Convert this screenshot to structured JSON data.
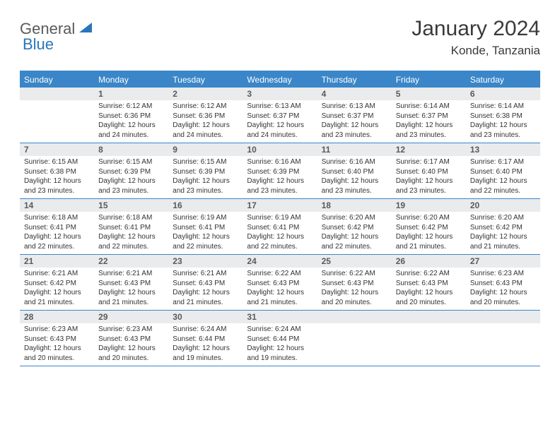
{
  "brand": {
    "name1": "General",
    "name2": "Blue"
  },
  "title": "January 2024",
  "location": "Konde, Tanzania",
  "colors": {
    "headerBar": "#3a86c8",
    "dayNumBg": "#e9ebed",
    "text": "#333333",
    "titleText": "#3a3a3a",
    "brandGrey": "#5a5a5a",
    "brandBlue": "#2976bb"
  },
  "days": [
    "Sunday",
    "Monday",
    "Tuesday",
    "Wednesday",
    "Thursday",
    "Friday",
    "Saturday"
  ],
  "weeks": [
    [
      null,
      {
        "n": "1",
        "sr": "6:12 AM",
        "ss": "6:36 PM",
        "dl": "12 hours and 24 minutes."
      },
      {
        "n": "2",
        "sr": "6:12 AM",
        "ss": "6:36 PM",
        "dl": "12 hours and 24 minutes."
      },
      {
        "n": "3",
        "sr": "6:13 AM",
        "ss": "6:37 PM",
        "dl": "12 hours and 24 minutes."
      },
      {
        "n": "4",
        "sr": "6:13 AM",
        "ss": "6:37 PM",
        "dl": "12 hours and 23 minutes."
      },
      {
        "n": "5",
        "sr": "6:14 AM",
        "ss": "6:37 PM",
        "dl": "12 hours and 23 minutes."
      },
      {
        "n": "6",
        "sr": "6:14 AM",
        "ss": "6:38 PM",
        "dl": "12 hours and 23 minutes."
      }
    ],
    [
      {
        "n": "7",
        "sr": "6:15 AM",
        "ss": "6:38 PM",
        "dl": "12 hours and 23 minutes."
      },
      {
        "n": "8",
        "sr": "6:15 AM",
        "ss": "6:39 PM",
        "dl": "12 hours and 23 minutes."
      },
      {
        "n": "9",
        "sr": "6:15 AM",
        "ss": "6:39 PM",
        "dl": "12 hours and 23 minutes."
      },
      {
        "n": "10",
        "sr": "6:16 AM",
        "ss": "6:39 PM",
        "dl": "12 hours and 23 minutes."
      },
      {
        "n": "11",
        "sr": "6:16 AM",
        "ss": "6:40 PM",
        "dl": "12 hours and 23 minutes."
      },
      {
        "n": "12",
        "sr": "6:17 AM",
        "ss": "6:40 PM",
        "dl": "12 hours and 23 minutes."
      },
      {
        "n": "13",
        "sr": "6:17 AM",
        "ss": "6:40 PM",
        "dl": "12 hours and 22 minutes."
      }
    ],
    [
      {
        "n": "14",
        "sr": "6:18 AM",
        "ss": "6:41 PM",
        "dl": "12 hours and 22 minutes."
      },
      {
        "n": "15",
        "sr": "6:18 AM",
        "ss": "6:41 PM",
        "dl": "12 hours and 22 minutes."
      },
      {
        "n": "16",
        "sr": "6:19 AM",
        "ss": "6:41 PM",
        "dl": "12 hours and 22 minutes."
      },
      {
        "n": "17",
        "sr": "6:19 AM",
        "ss": "6:41 PM",
        "dl": "12 hours and 22 minutes."
      },
      {
        "n": "18",
        "sr": "6:20 AM",
        "ss": "6:42 PM",
        "dl": "12 hours and 22 minutes."
      },
      {
        "n": "19",
        "sr": "6:20 AM",
        "ss": "6:42 PM",
        "dl": "12 hours and 21 minutes."
      },
      {
        "n": "20",
        "sr": "6:20 AM",
        "ss": "6:42 PM",
        "dl": "12 hours and 21 minutes."
      }
    ],
    [
      {
        "n": "21",
        "sr": "6:21 AM",
        "ss": "6:42 PM",
        "dl": "12 hours and 21 minutes."
      },
      {
        "n": "22",
        "sr": "6:21 AM",
        "ss": "6:43 PM",
        "dl": "12 hours and 21 minutes."
      },
      {
        "n": "23",
        "sr": "6:21 AM",
        "ss": "6:43 PM",
        "dl": "12 hours and 21 minutes."
      },
      {
        "n": "24",
        "sr": "6:22 AM",
        "ss": "6:43 PM",
        "dl": "12 hours and 21 minutes."
      },
      {
        "n": "25",
        "sr": "6:22 AM",
        "ss": "6:43 PM",
        "dl": "12 hours and 20 minutes."
      },
      {
        "n": "26",
        "sr": "6:22 AM",
        "ss": "6:43 PM",
        "dl": "12 hours and 20 minutes."
      },
      {
        "n": "27",
        "sr": "6:23 AM",
        "ss": "6:43 PM",
        "dl": "12 hours and 20 minutes."
      }
    ],
    [
      {
        "n": "28",
        "sr": "6:23 AM",
        "ss": "6:43 PM",
        "dl": "12 hours and 20 minutes."
      },
      {
        "n": "29",
        "sr": "6:23 AM",
        "ss": "6:43 PM",
        "dl": "12 hours and 20 minutes."
      },
      {
        "n": "30",
        "sr": "6:24 AM",
        "ss": "6:44 PM",
        "dl": "12 hours and 19 minutes."
      },
      {
        "n": "31",
        "sr": "6:24 AM",
        "ss": "6:44 PM",
        "dl": "12 hours and 19 minutes."
      },
      null,
      null,
      null
    ]
  ],
  "labels": {
    "sunrise": "Sunrise:",
    "sunset": "Sunset:",
    "daylight": "Daylight:"
  }
}
